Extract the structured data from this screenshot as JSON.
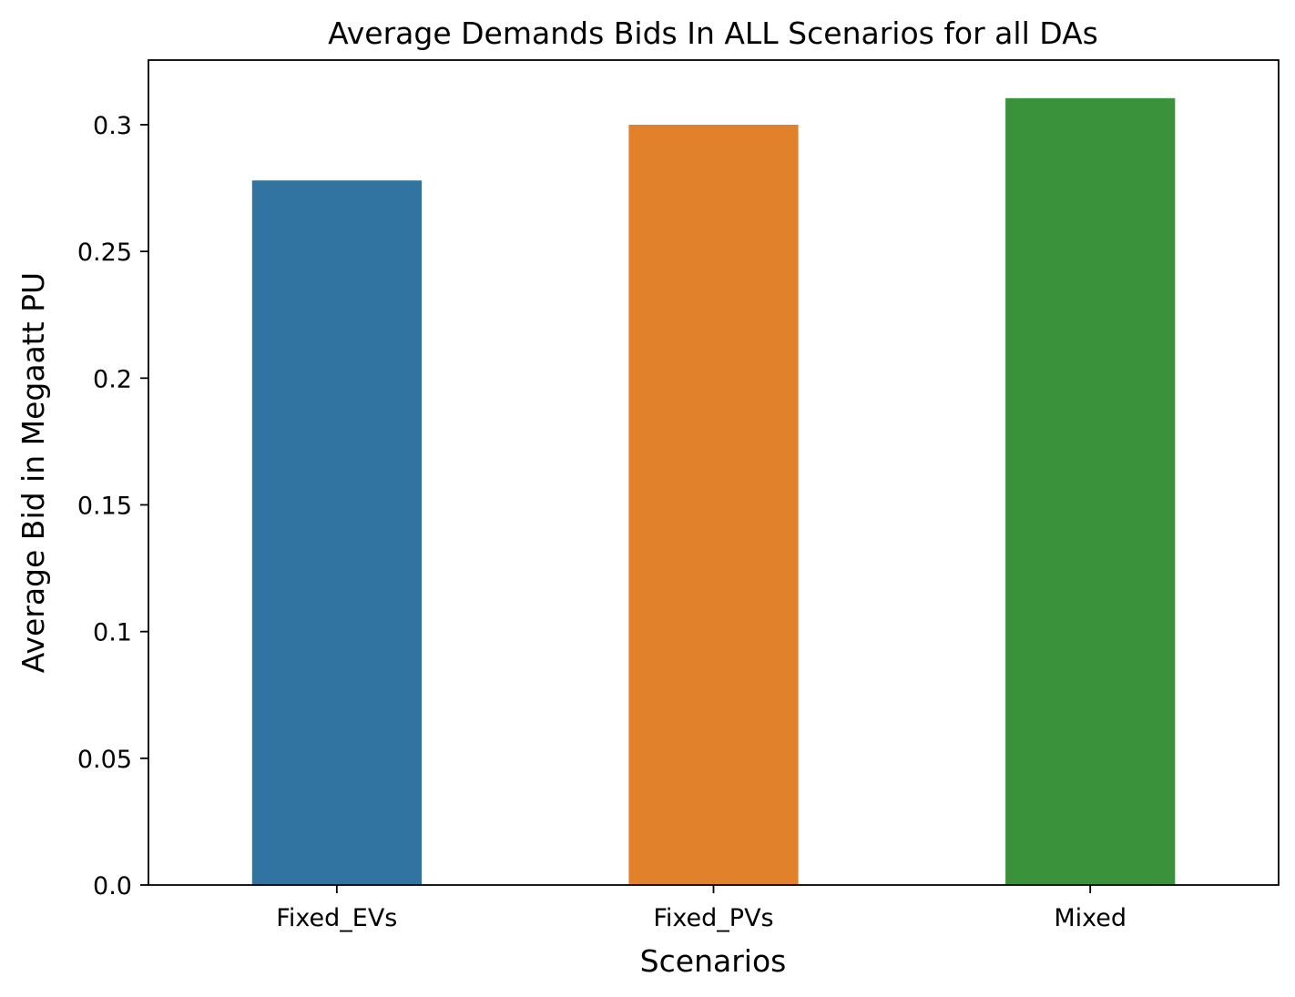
{
  "chart_data": {
    "type": "bar",
    "title": "Average Demands Bids In ALL Scenarios for all DAs",
    "xlabel": "Scenarios",
    "ylabel": "Average Bid in Megaatt PU",
    "categories": [
      "Fixed_EVs",
      "Fixed_PVs",
      "Mixed"
    ],
    "values": [
      0.278,
      0.3,
      0.3105
    ],
    "colors": [
      "#3274a1",
      "#e1812c",
      "#3a923a"
    ],
    "ylim": [
      0,
      0.3255
    ],
    "yticks": [
      0.0,
      0.05,
      0.1,
      0.15,
      0.2,
      0.25,
      0.3
    ],
    "ytick_labels": [
      "0.0",
      "0.05",
      "0.1",
      "0.15",
      "0.2",
      "0.25",
      "0.3"
    ],
    "grid": false,
    "legend": "none"
  }
}
